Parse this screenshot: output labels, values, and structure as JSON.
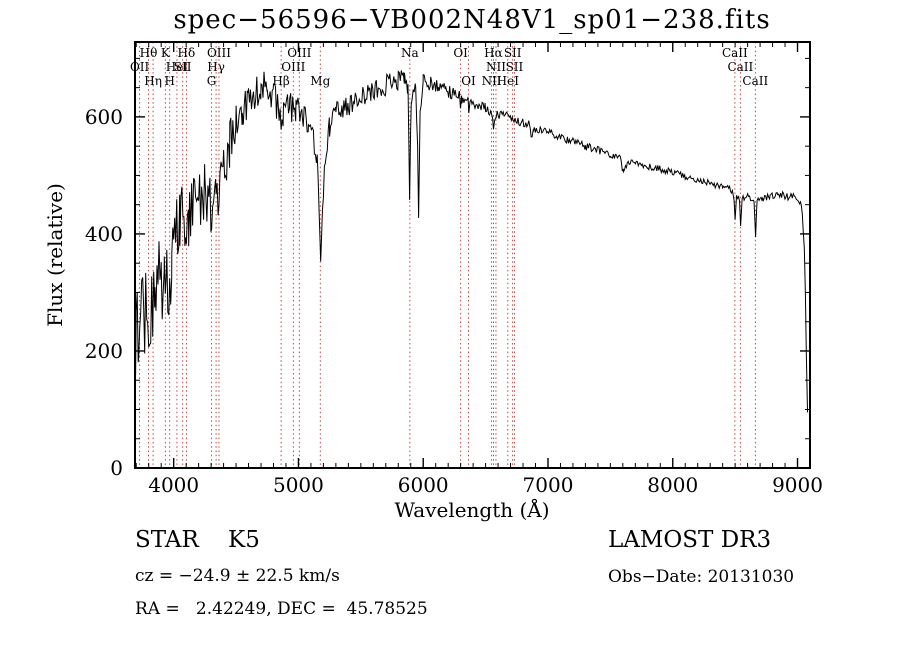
{
  "title": "spec−56596−VB002N48V1_sp01−238.fits",
  "footer": {
    "class_label": "STAR    K5",
    "survey": "LAMOST DR3",
    "cz_line": "cz = −24.9 ± 22.5 km/s",
    "obs_date": "Obs−Date: 20131030",
    "radec_line": "RA =   2.42249, DEC =  45.78525"
  },
  "chart_data": {
    "type": "line",
    "title": "spec−56596−VB002N48V1_sp01−238.fits",
    "xlabel": "Wavelength (Å)",
    "ylabel": "Flux (relative)",
    "xlim": [
      3690,
      9100
    ],
    "ylim": [
      0,
      728
    ],
    "x_major_ticks": [
      4000,
      5000,
      6000,
      7000,
      8000,
      9000
    ],
    "x_minor_step": 100,
    "y_major_ticks": [
      0,
      200,
      400,
      600
    ],
    "y_minor_step": 50,
    "grid": false,
    "legend": "none",
    "line_color": "#000000",
    "spectral_line_color": "#c03030",
    "spectral_lines": [
      {
        "wavelength": 3727,
        "label": "OII",
        "row": 2
      },
      {
        "wavelength": 3798,
        "label": "Hθ",
        "row": 1
      },
      {
        "wavelength": 3835,
        "label": "Hη",
        "row": 3
      },
      {
        "wavelength": 3933,
        "label": "K",
        "row": 1
      },
      {
        "wavelength": 3968,
        "label": "H",
        "row": 3
      },
      {
        "wavelength": 4026,
        "label": "HeI",
        "row": 2
      },
      {
        "wavelength": 4072,
        "label": "SII",
        "row": 2
      },
      {
        "wavelength": 4102,
        "label": "Hδ",
        "row": 1
      },
      {
        "wavelength": 4304,
        "label": "G",
        "row": 3
      },
      {
        "wavelength": 4340,
        "label": "Hγ",
        "row": 2
      },
      {
        "wavelength": 4363,
        "label": "OIII",
        "row": 1
      },
      {
        "wavelength": 4861,
        "label": "Hβ",
        "row": 3
      },
      {
        "wavelength": 4959,
        "label": "OIII",
        "row": 2
      },
      {
        "wavelength": 5007,
        "label": "OIII",
        "row": 1
      },
      {
        "wavelength": 5175,
        "label": "Mg",
        "row": 3
      },
      {
        "wavelength": 5893,
        "label": "Na",
        "row": 1
      },
      {
        "wavelength": 6300,
        "label": "OI",
        "row": 1
      },
      {
        "wavelength": 6363,
        "label": "OI",
        "row": 3
      },
      {
        "wavelength": 6548,
        "label": "NII",
        "row": 3
      },
      {
        "wavelength": 6563,
        "label": "Hα",
        "row": 1
      },
      {
        "wavelength": 6583,
        "label": "NII",
        "row": 2
      },
      {
        "wavelength": 6678,
        "label": "HeI",
        "row": 3
      },
      {
        "wavelength": 6717,
        "label": "SII",
        "row": 1
      },
      {
        "wavelength": 6731,
        "label": "SII",
        "row": 2
      },
      {
        "wavelength": 8498,
        "label": "CaII",
        "row": 1
      },
      {
        "wavelength": 8542,
        "label": "CaII",
        "row": 2
      },
      {
        "wavelength": 8662,
        "label": "CaII",
        "row": 3
      }
    ],
    "series": [
      {
        "name": "spectrum",
        "sample_step": 8,
        "noise_seed": 7,
        "envelope_points": [
          [
            3695,
            170,
            60
          ],
          [
            3700,
            230,
            85
          ],
          [
            3720,
            250,
            90
          ],
          [
            3760,
            260,
            90
          ],
          [
            3800,
            285,
            80
          ],
          [
            3850,
            300,
            80
          ],
          [
            3900,
            330,
            75
          ],
          [
            3925,
            310,
            60
          ],
          [
            3933,
            265,
            55
          ],
          [
            3945,
            320,
            60
          ],
          [
            3968,
            300,
            55
          ],
          [
            3985,
            350,
            60
          ],
          [
            4000,
            390,
            65
          ],
          [
            4050,
            420,
            65
          ],
          [
            4090,
            415,
            60
          ],
          [
            4102,
            385,
            55
          ],
          [
            4120,
            430,
            60
          ],
          [
            4160,
            450,
            58
          ],
          [
            4200,
            465,
            55
          ],
          [
            4250,
            480,
            55
          ],
          [
            4290,
            460,
            50
          ],
          [
            4304,
            435,
            45
          ],
          [
            4320,
            465,
            48
          ],
          [
            4340,
            455,
            45
          ],
          [
            4363,
            470,
            45
          ],
          [
            4400,
            510,
            45
          ],
          [
            4450,
            555,
            40
          ],
          [
            4500,
            585,
            36
          ],
          [
            4550,
            608,
            34
          ],
          [
            4600,
            628,
            32
          ],
          [
            4650,
            642,
            32
          ],
          [
            4700,
            655,
            30
          ],
          [
            4750,
            640,
            30
          ],
          [
            4800,
            632,
            28
          ],
          [
            4845,
            615,
            26
          ],
          [
            4861,
            592,
            24
          ],
          [
            4880,
            612,
            26
          ],
          [
            4930,
            618,
            26
          ],
          [
            4980,
            612,
            25
          ],
          [
            5030,
            602,
            24
          ],
          [
            5080,
            585,
            23
          ],
          [
            5120,
            562,
            21
          ],
          [
            5150,
            520,
            18
          ],
          [
            5168,
            420,
            14
          ],
          [
            5178,
            345,
            12
          ],
          [
            5192,
            430,
            14
          ],
          [
            5215,
            530,
            18
          ],
          [
            5250,
            585,
            20
          ],
          [
            5300,
            608,
            21
          ],
          [
            5400,
            618,
            21
          ],
          [
            5500,
            630,
            20
          ],
          [
            5600,
            643,
            19
          ],
          [
            5700,
            654,
            18
          ],
          [
            5800,
            663,
            17
          ],
          [
            5850,
            672,
            15
          ],
          [
            5878,
            645,
            11
          ],
          [
            5891,
            460,
            8
          ],
          [
            5904,
            630,
            11
          ],
          [
            5940,
            650,
            13
          ],
          [
            5955,
            560,
            9
          ],
          [
            5963,
            425,
            7
          ],
          [
            5975,
            600,
            10
          ],
          [
            6000,
            660,
            13
          ],
          [
            6060,
            658,
            13
          ],
          [
            6120,
            652,
            12
          ],
          [
            6180,
            646,
            12
          ],
          [
            6240,
            640,
            11
          ],
          [
            6290,
            634,
            10
          ],
          [
            6300,
            620,
            9
          ],
          [
            6310,
            632,
            10
          ],
          [
            6360,
            628,
            10
          ],
          [
            6365,
            615,
            9
          ],
          [
            6375,
            626,
            10
          ],
          [
            6440,
            622,
            9
          ],
          [
            6500,
            617,
            9
          ],
          [
            6540,
            610,
            8
          ],
          [
            6563,
            585,
            7
          ],
          [
            6585,
            605,
            8
          ],
          [
            6650,
            602,
            8
          ],
          [
            6720,
            596,
            8
          ],
          [
            6790,
            591,
            8
          ],
          [
            6850,
            587,
            7
          ],
          [
            6865,
            562,
            6
          ],
          [
            6882,
            580,
            7
          ],
          [
            6950,
            576,
            7
          ],
          [
            7020,
            572,
            7
          ],
          [
            7100,
            566,
            7
          ],
          [
            7200,
            558,
            7
          ],
          [
            7300,
            550,
            7
          ],
          [
            7400,
            543,
            7
          ],
          [
            7500,
            536,
            6
          ],
          [
            7580,
            528,
            6
          ],
          [
            7605,
            505,
            5
          ],
          [
            7635,
            520,
            6
          ],
          [
            7700,
            521,
            6
          ],
          [
            7800,
            516,
            6
          ],
          [
            7900,
            511,
            6
          ],
          [
            8000,
            506,
            6
          ],
          [
            8100,
            499,
            6
          ],
          [
            8200,
            493,
            6
          ],
          [
            8300,
            487,
            6
          ],
          [
            8400,
            481,
            6
          ],
          [
            8470,
            474,
            6
          ],
          [
            8492,
            460,
            5
          ],
          [
            8500,
            428,
            4
          ],
          [
            8512,
            462,
            5
          ],
          [
            8536,
            458,
            5
          ],
          [
            8544,
            412,
            4
          ],
          [
            8556,
            460,
            5
          ],
          [
            8600,
            464,
            5
          ],
          [
            8652,
            458,
            5
          ],
          [
            8664,
            398,
            4
          ],
          [
            8676,
            458,
            5
          ],
          [
            8720,
            461,
            5
          ],
          [
            8780,
            464,
            6
          ],
          [
            8840,
            467,
            6
          ],
          [
            8900,
            466,
            7
          ],
          [
            8950,
            463,
            7
          ],
          [
            9000,
            459,
            8
          ],
          [
            9030,
            452,
            9
          ],
          [
            9055,
            380,
            15
          ],
          [
            9070,
            210,
            20
          ],
          [
            9080,
            95,
            10
          ]
        ]
      }
    ]
  }
}
